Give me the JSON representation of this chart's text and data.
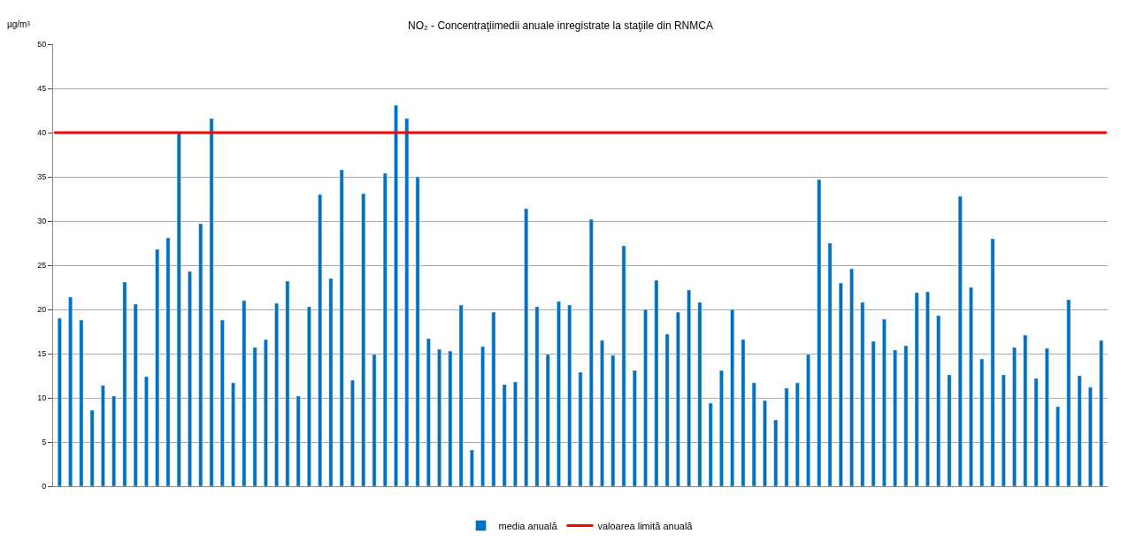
{
  "chart_data": {
    "type": "bar",
    "title": "NO₂ - Concentraţiimedii anuale inregistrate la staţiile din RNMCA",
    "ylabel": "µg/m³",
    "categories": [
      null,
      null,
      null,
      null,
      null,
      null,
      null,
      null,
      null,
      null,
      null,
      null,
      null,
      null,
      null,
      null,
      null,
      null,
      null,
      null,
      null,
      null,
      null,
      null,
      null,
      null,
      null,
      null,
      null,
      null,
      null,
      null,
      null,
      null,
      null,
      null,
      null,
      null,
      null,
      null,
      null,
      null,
      null,
      null,
      null,
      null,
      null,
      null,
      null,
      null,
      null,
      null,
      null,
      null,
      null,
      null,
      null,
      null,
      null,
      null,
      null,
      null,
      null,
      null,
      null,
      null,
      null,
      null,
      null,
      null,
      null,
      null,
      null,
      null,
      null,
      null,
      null,
      null,
      null,
      null,
      null,
      null,
      null,
      null,
      null,
      null,
      null,
      null,
      null,
      null,
      null,
      null,
      null,
      null,
      null,
      null,
      null
    ],
    "series": [
      {
        "name": "media anuală",
        "color": "#0070c0",
        "values": [
          19,
          21.4,
          18.8,
          8.6,
          11.4,
          10.2,
          23.1,
          20.6,
          12.4,
          26.8,
          28.1,
          40.1,
          24.3,
          29.7,
          41.6,
          18.8,
          11.7,
          21,
          15.7,
          16.6,
          20.7,
          23.2,
          10.2,
          20.3,
          33,
          23.5,
          35.8,
          12,
          33.1,
          14.9,
          35.4,
          43.1,
          41.6,
          35,
          16.7,
          15.5,
          15.3,
          20.5,
          4.1,
          15.8,
          19.7,
          11.5,
          11.8,
          31.4,
          20.3,
          14.9,
          20.9,
          20.5,
          12.9,
          30.2,
          16.5,
          14.8,
          27.2,
          13.1,
          20,
          23.3,
          17.2,
          19.7,
          22.2,
          20.8,
          9.4,
          13.1,
          20,
          16.6,
          11.7,
          9.7,
          7.5,
          11.1,
          11.7,
          14.9,
          34.7,
          27.5,
          23,
          24.6,
          20.8,
          16.4,
          18.9,
          15.4,
          15.9,
          21.9,
          22,
          19.3,
          12.6,
          32.8,
          22.5,
          14.4,
          28,
          12.6,
          15.7,
          17.1,
          12.2,
          15.6,
          9,
          21.1,
          12.5,
          11.2,
          16.5
        ]
      }
    ],
    "ref_lines": [
      {
        "axis": "y",
        "value": 40,
        "label": "valoarea limită anuală",
        "color": "#ff0000"
      }
    ],
    "ylim": [
      0,
      50
    ],
    "yticks": [
      0,
      5,
      10,
      15,
      20,
      25,
      30,
      35,
      40,
      45,
      50
    ],
    "grid": "y",
    "legend": "bottom"
  }
}
